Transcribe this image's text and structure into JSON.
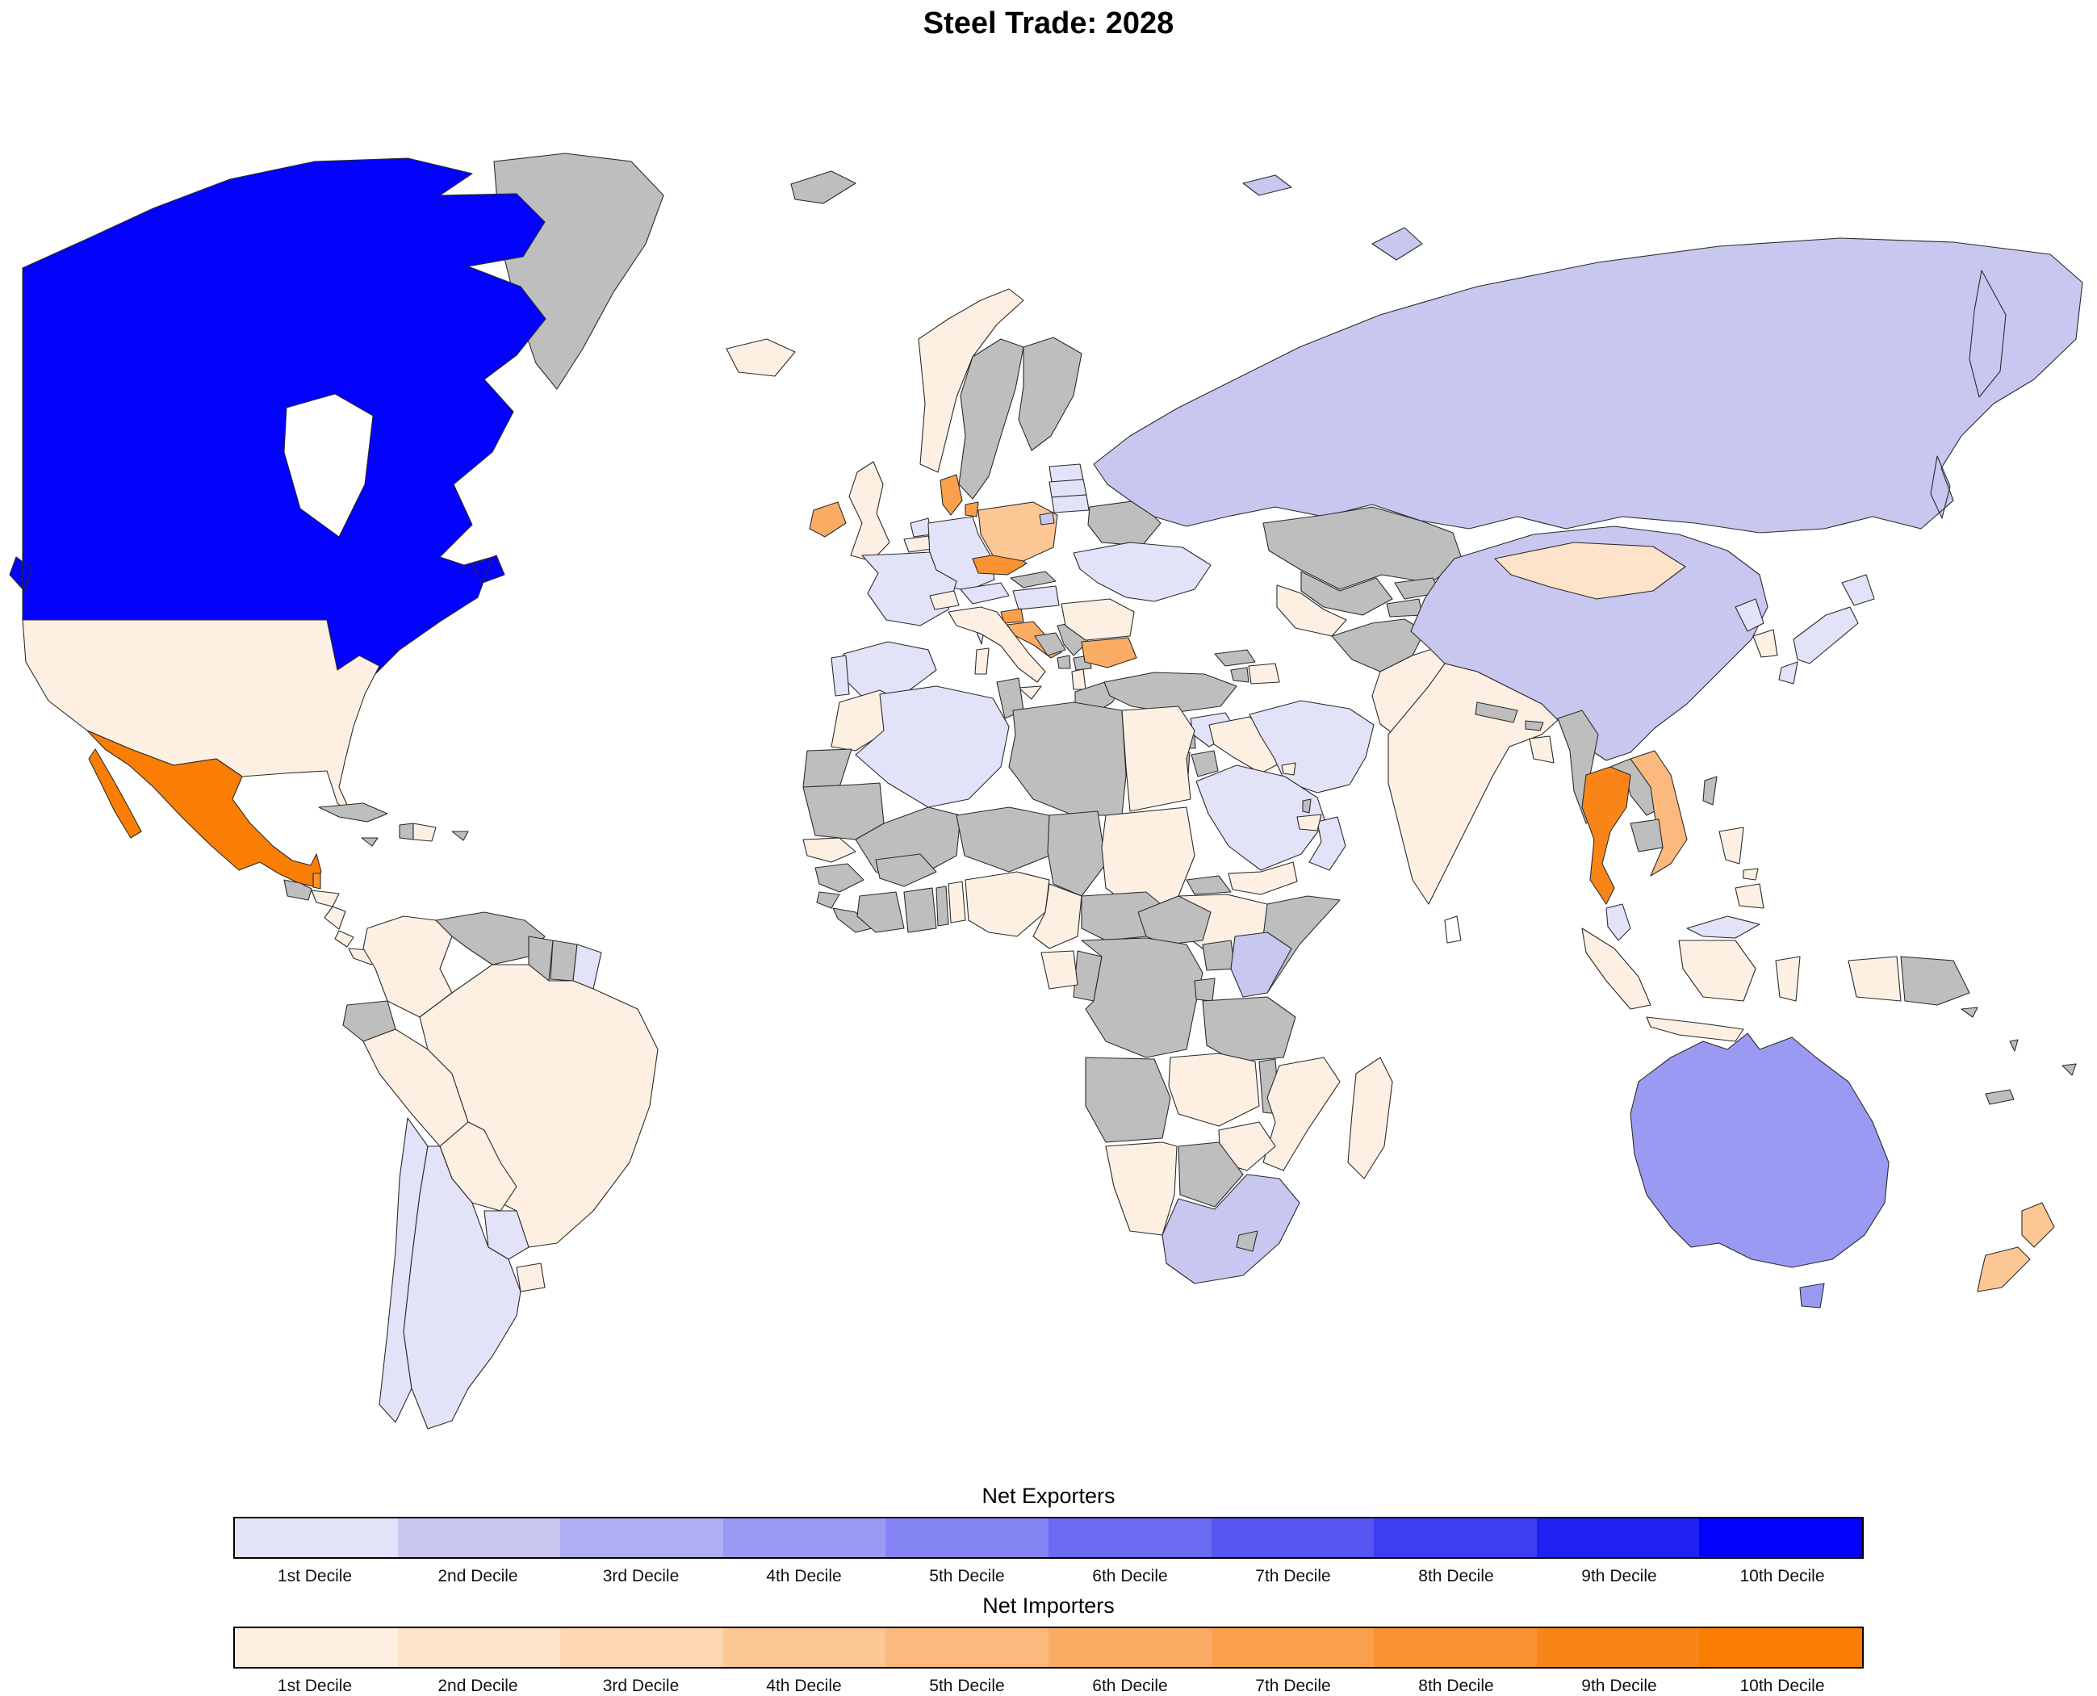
{
  "title": "Steel Trade: 2028",
  "legend_exporters": {
    "title": "Net Exporters",
    "labels": [
      "1st Decile",
      "2nd Decile",
      "3rd Decile",
      "4th Decile",
      "5th Decile",
      "6th Decile",
      "7th Decile",
      "8th Decile",
      "9th Decile",
      "10th Decile"
    ]
  },
  "legend_importers": {
    "title": "Net Importers",
    "labels": [
      "1st Decile",
      "2nd Decile",
      "3rd Decile",
      "4th Decile",
      "5th Decile",
      "6th Decile",
      "7th Decile",
      "8th Decile",
      "9th Decile",
      "10th Decile"
    ]
  },
  "palette": {
    "exporter": [
      "#E2E2F8",
      "#C7C7F0",
      "#AFAFF4",
      "#9A9AF2",
      "#8484F4",
      "#6B6BF4",
      "#5656F3",
      "#3D3DF2",
      "#2020F3",
      "#0202FD"
    ],
    "importer": [
      "#FDF0E3",
      "#FCE3C9",
      "#FDD7B3",
      "#FCC795",
      "#FBB97E",
      "#FBAC64",
      "#FA9F4B",
      "#FA9231",
      "#F98519",
      "#FB7E04"
    ],
    "no_data": "#BEBEBE",
    "none": "#FFFFFF",
    "border": "#2b2b2b",
    "ocean": "#FFFFFF"
  },
  "chart_data": {
    "type": "choropleth_map",
    "title": "Steel Trade: 2028",
    "subject": "Net steel trade position by country, shown in deciles",
    "legend_position": "bottom",
    "countries": [
      {
        "name": "Canada",
        "status": "exporter",
        "decile": 10
      },
      {
        "name": "Australia",
        "status": "exporter",
        "decile": 4
      },
      {
        "name": "Russia",
        "status": "exporter",
        "decile": 2
      },
      {
        "name": "China",
        "status": "exporter",
        "decile": 2
      },
      {
        "name": "South Africa",
        "status": "exporter",
        "decile": 2
      },
      {
        "name": "Kenya",
        "status": "exporter",
        "decile": 2
      },
      {
        "name": "France",
        "status": "exporter",
        "decile": 1
      },
      {
        "name": "Germany",
        "status": "exporter",
        "decile": 1
      },
      {
        "name": "Netherlands",
        "status": "exporter",
        "decile": 1
      },
      {
        "name": "Austria",
        "status": "exporter",
        "decile": 1
      },
      {
        "name": "Hungary",
        "status": "exporter",
        "decile": 1
      },
      {
        "name": "Spain",
        "status": "exporter",
        "decile": 1
      },
      {
        "name": "Portugal",
        "status": "exporter",
        "decile": 1
      },
      {
        "name": "Ukraine",
        "status": "exporter",
        "decile": 1
      },
      {
        "name": "Estonia",
        "status": "exporter",
        "decile": 1
      },
      {
        "name": "Latvia",
        "status": "exporter",
        "decile": 1
      },
      {
        "name": "Lithuania",
        "status": "exporter",
        "decile": 1
      },
      {
        "name": "Syria",
        "status": "exporter",
        "decile": 1
      },
      {
        "name": "Iran",
        "status": "exporter",
        "decile": 1
      },
      {
        "name": "Saudi Arabia",
        "status": "exporter",
        "decile": 1
      },
      {
        "name": "Oman",
        "status": "exporter",
        "decile": 1
      },
      {
        "name": "Algeria",
        "status": "exporter",
        "decile": 1
      },
      {
        "name": "Paraguay",
        "status": "exporter",
        "decile": 1
      },
      {
        "name": "Chile",
        "status": "exporter",
        "decile": 1
      },
      {
        "name": "Argentina",
        "status": "exporter",
        "decile": 1
      },
      {
        "name": "French Guiana",
        "status": "exporter",
        "decile": 1
      },
      {
        "name": "Malaysia",
        "status": "exporter",
        "decile": 1
      },
      {
        "name": "North Korea",
        "status": "exporter",
        "decile": 1
      },
      {
        "name": "Japan",
        "status": "exporter",
        "decile": 1
      },
      {
        "name": "Mexico",
        "status": "importer",
        "decile": 10
      },
      {
        "name": "Thailand",
        "status": "importer",
        "decile": 9
      },
      {
        "name": "Czechia",
        "status": "importer",
        "decile": 8
      },
      {
        "name": "Belize",
        "status": "importer",
        "decile": 8
      },
      {
        "name": "Denmark",
        "status": "importer",
        "decile": 7
      },
      {
        "name": "Slovenia",
        "status": "importer",
        "decile": 7
      },
      {
        "name": "Cyprus",
        "status": "importer",
        "decile": 7
      },
      {
        "name": "Ireland",
        "status": "importer",
        "decile": 6
      },
      {
        "name": "Croatia",
        "status": "importer",
        "decile": 6
      },
      {
        "name": "Bulgaria",
        "status": "importer",
        "decile": 6
      },
      {
        "name": "Vietnam",
        "status": "importer",
        "decile": 5
      },
      {
        "name": "New Zealand",
        "status": "importer",
        "decile": 4
      },
      {
        "name": "Poland",
        "status": "importer",
        "decile": 4
      },
      {
        "name": "Mongolia",
        "status": "importer",
        "decile": 2
      },
      {
        "name": "United States",
        "status": "importer",
        "decile": 1
      },
      {
        "name": "Honduras",
        "status": "importer",
        "decile": 1
      },
      {
        "name": "Nicaragua",
        "status": "importer",
        "decile": 1
      },
      {
        "name": "Costa Rica",
        "status": "importer",
        "decile": 1
      },
      {
        "name": "Panama",
        "status": "importer",
        "decile": 1
      },
      {
        "name": "Dominican Republic",
        "status": "importer",
        "decile": 1
      },
      {
        "name": "Colombia",
        "status": "importer",
        "decile": 1
      },
      {
        "name": "Peru",
        "status": "importer",
        "decile": 1
      },
      {
        "name": "Brazil",
        "status": "importer",
        "decile": 1
      },
      {
        "name": "Bolivia",
        "status": "importer",
        "decile": 1
      },
      {
        "name": "Uruguay",
        "status": "importer",
        "decile": 1
      },
      {
        "name": "Iceland",
        "status": "importer",
        "decile": 1
      },
      {
        "name": "United Kingdom",
        "status": "importer",
        "decile": 1
      },
      {
        "name": "Norway",
        "status": "importer",
        "decile": 1
      },
      {
        "name": "Belgium",
        "status": "importer",
        "decile": 1
      },
      {
        "name": "Switzerland",
        "status": "importer",
        "decile": 1
      },
      {
        "name": "Italy",
        "status": "importer",
        "decile": 1
      },
      {
        "name": "Albania",
        "status": "importer",
        "decile": 1
      },
      {
        "name": "Romania",
        "status": "importer",
        "decile": 1
      },
      {
        "name": "Iraq",
        "status": "importer",
        "decile": 1
      },
      {
        "name": "Yemen",
        "status": "importer",
        "decile": 1
      },
      {
        "name": "United Arab Emirates",
        "status": "importer",
        "decile": 1
      },
      {
        "name": "Kuwait",
        "status": "importer",
        "decile": 1
      },
      {
        "name": "Azerbaijan",
        "status": "importer",
        "decile": 1
      },
      {
        "name": "Turkmenistan",
        "status": "importer",
        "decile": 1
      },
      {
        "name": "Pakistan",
        "status": "importer",
        "decile": 1
      },
      {
        "name": "India",
        "status": "importer",
        "decile": 1
      },
      {
        "name": "Bangladesh",
        "status": "importer",
        "decile": 1
      },
      {
        "name": "Indonesia",
        "status": "importer",
        "decile": 1
      },
      {
        "name": "Philippines",
        "status": "importer",
        "decile": 1
      },
      {
        "name": "South Korea",
        "status": "importer",
        "decile": 1
      },
      {
        "name": "Morocco",
        "status": "importer",
        "decile": 1
      },
      {
        "name": "Egypt",
        "status": "importer",
        "decile": 1
      },
      {
        "name": "Sudan",
        "status": "importer",
        "decile": 1
      },
      {
        "name": "Senegal",
        "status": "importer",
        "decile": 1
      },
      {
        "name": "Benin",
        "status": "importer",
        "decile": 1
      },
      {
        "name": "Nigeria",
        "status": "importer",
        "decile": 1
      },
      {
        "name": "Cameroon",
        "status": "importer",
        "decile": 1
      },
      {
        "name": "Gabon",
        "status": "importer",
        "decile": 1
      },
      {
        "name": "Ethiopia",
        "status": "importer",
        "decile": 1
      },
      {
        "name": "Zambia",
        "status": "importer",
        "decile": 1
      },
      {
        "name": "Mozambique",
        "status": "importer",
        "decile": 1
      },
      {
        "name": "Zimbabwe",
        "status": "importer",
        "decile": 1
      },
      {
        "name": "Namibia",
        "status": "importer",
        "decile": 1
      },
      {
        "name": "Madagascar",
        "status": "importer",
        "decile": 1
      },
      {
        "name": "Greenland",
        "status": "no_data",
        "decile": null
      },
      {
        "name": "Cuba",
        "status": "no_data",
        "decile": null
      },
      {
        "name": "Haiti",
        "status": "no_data",
        "decile": null
      },
      {
        "name": "Jamaica",
        "status": "no_data",
        "decile": null
      },
      {
        "name": "Puerto Rico",
        "status": "no_data",
        "decile": null
      },
      {
        "name": "Guatemala",
        "status": "no_data",
        "decile": null
      },
      {
        "name": "Venezuela",
        "status": "no_data",
        "decile": null
      },
      {
        "name": "Guyana",
        "status": "no_data",
        "decile": null
      },
      {
        "name": "Suriname",
        "status": "no_data",
        "decile": null
      },
      {
        "name": "Ecuador",
        "status": "no_data",
        "decile": null
      },
      {
        "name": "Sweden",
        "status": "no_data",
        "decile": null
      },
      {
        "name": "Finland",
        "status": "no_data",
        "decile": null
      },
      {
        "name": "Slovakia",
        "status": "no_data",
        "decile": null
      },
      {
        "name": "Bosnia and Herzegovina",
        "status": "no_data",
        "decile": null
      },
      {
        "name": "Serbia",
        "status": "no_data",
        "decile": null
      },
      {
        "name": "Montenegro",
        "status": "no_data",
        "decile": null
      },
      {
        "name": "North Macedonia",
        "status": "no_data",
        "decile": null
      },
      {
        "name": "Greece",
        "status": "no_data",
        "decile": null
      },
      {
        "name": "Belarus",
        "status": "no_data",
        "decile": null
      },
      {
        "name": "Turkey",
        "status": "no_data",
        "decile": null
      },
      {
        "name": "Lebanon",
        "status": "no_data",
        "decile": null
      },
      {
        "name": "Israel",
        "status": "no_data",
        "decile": null
      },
      {
        "name": "Jordan",
        "status": "no_data",
        "decile": null
      },
      {
        "name": "Georgia",
        "status": "no_data",
        "decile": null
      },
      {
        "name": "Armenia",
        "status": "no_data",
        "decile": null
      },
      {
        "name": "Qatar",
        "status": "no_data",
        "decile": null
      },
      {
        "name": "Kazakhstan",
        "status": "no_data",
        "decile": null
      },
      {
        "name": "Uzbekistan",
        "status": "no_data",
        "decile": null
      },
      {
        "name": "Kyrgyzstan",
        "status": "no_data",
        "decile": null
      },
      {
        "name": "Tajikistan",
        "status": "no_data",
        "decile": null
      },
      {
        "name": "Afghanistan",
        "status": "no_data",
        "decile": null
      },
      {
        "name": "Nepal",
        "status": "no_data",
        "decile": null
      },
      {
        "name": "Bhutan",
        "status": "no_data",
        "decile": null
      },
      {
        "name": "Myanmar",
        "status": "no_data",
        "decile": null
      },
      {
        "name": "Laos",
        "status": "no_data",
        "decile": null
      },
      {
        "name": "Cambodia",
        "status": "no_data",
        "decile": null
      },
      {
        "name": "Taiwan",
        "status": "no_data",
        "decile": null
      },
      {
        "name": "Papua New Guinea",
        "status": "no_data",
        "decile": null
      },
      {
        "name": "Western Sahara",
        "status": "no_data",
        "decile": null
      },
      {
        "name": "Mauritania",
        "status": "no_data",
        "decile": null
      },
      {
        "name": "Mali",
        "status": "no_data",
        "decile": null
      },
      {
        "name": "Niger",
        "status": "no_data",
        "decile": null
      },
      {
        "name": "Chad",
        "status": "no_data",
        "decile": null
      },
      {
        "name": "Libya",
        "status": "no_data",
        "decile": null
      },
      {
        "name": "Tunisia",
        "status": "no_data",
        "decile": null
      },
      {
        "name": "Guinea",
        "status": "no_data",
        "decile": null
      },
      {
        "name": "Sierra Leone",
        "status": "no_data",
        "decile": null
      },
      {
        "name": "Liberia",
        "status": "no_data",
        "decile": null
      },
      {
        "name": "Ivory Coast",
        "status": "no_data",
        "decile": null
      },
      {
        "name": "Ghana",
        "status": "no_data",
        "decile": null
      },
      {
        "name": "Togo",
        "status": "no_data",
        "decile": null
      },
      {
        "name": "Burkina Faso",
        "status": "no_data",
        "decile": null
      },
      {
        "name": "Eritrea",
        "status": "no_data",
        "decile": null
      },
      {
        "name": "Djibouti",
        "status": "no_data",
        "decile": null
      },
      {
        "name": "Somalia",
        "status": "no_data",
        "decile": null
      },
      {
        "name": "South Sudan",
        "status": "no_data",
        "decile": null
      },
      {
        "name": "Central African Republic",
        "status": "no_data",
        "decile": null
      },
      {
        "name": "Uganda",
        "status": "no_data",
        "decile": null
      },
      {
        "name": "Rwanda",
        "status": "no_data",
        "decile": null
      },
      {
        "name": "DR Congo",
        "status": "no_data",
        "decile": null
      },
      {
        "name": "Republic of the Congo",
        "status": "no_data",
        "decile": null
      },
      {
        "name": "Tanzania",
        "status": "no_data",
        "decile": null
      },
      {
        "name": "Angola",
        "status": "no_data",
        "decile": null
      },
      {
        "name": "Malawi",
        "status": "no_data",
        "decile": null
      },
      {
        "name": "Botswana",
        "status": "no_data",
        "decile": null
      },
      {
        "name": "Lesotho",
        "status": "no_data",
        "decile": null
      },
      {
        "name": "Fiji",
        "status": "no_data",
        "decile": null
      },
      {
        "name": "New Caledonia",
        "status": "no_data",
        "decile": null
      },
      {
        "name": "Solomon Islands",
        "status": "no_data",
        "decile": null
      },
      {
        "name": "Vanuatu",
        "status": "no_data",
        "decile": null
      },
      {
        "name": "Svalbard",
        "status": "no_data",
        "decile": null
      },
      {
        "name": "Sri Lanka",
        "status": "none",
        "decile": null
      }
    ]
  }
}
